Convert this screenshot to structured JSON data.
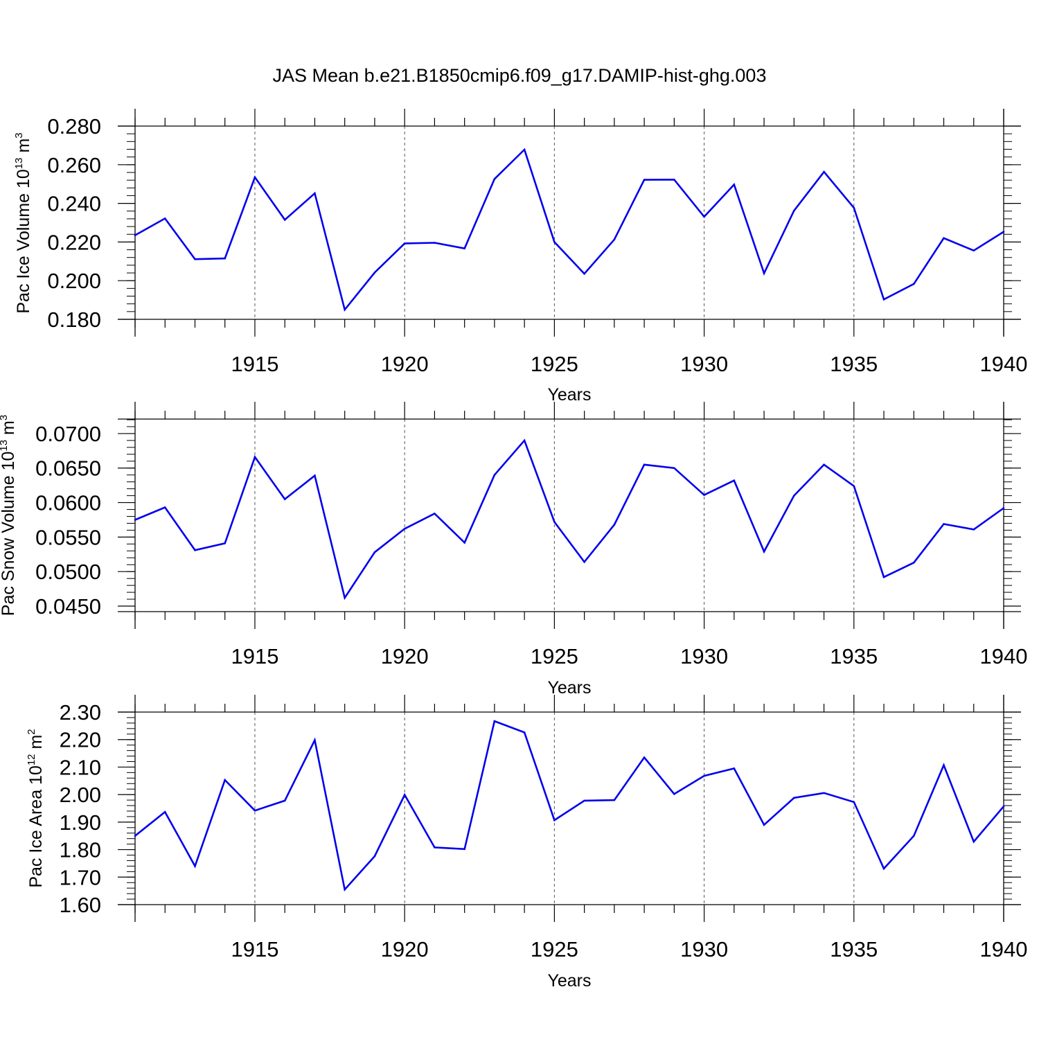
{
  "title": "JAS Mean b.e21.B1850cmip6.f09_g17.DAMIP-hist-ghg.003",
  "colors": {
    "series": "#0000ee",
    "axes": "#000000",
    "grid": "#555555"
  },
  "chart_data": [
    {
      "type": "line",
      "xlabel": "Years",
      "ylabel": {
        "prefix": "Pac Ice Volume 10",
        "exponent": "13",
        "unit": " m",
        "unit_exponent": "3"
      },
      "xlim": [
        1911,
        1940
      ],
      "ylim": [
        0.18,
        0.28
      ],
      "x_ticks": [
        "1915",
        "1920",
        "1925",
        "1930",
        "1935",
        "1940"
      ],
      "y_ticks": [
        "0.180",
        "0.200",
        "0.220",
        "0.240",
        "0.260",
        "0.280"
      ],
      "grid": "dashed vertical at major x ticks",
      "x": [
        1911,
        1912,
        1913,
        1914,
        1915,
        1916,
        1917,
        1918,
        1919,
        1920,
        1921,
        1922,
        1923,
        1924,
        1925,
        1926,
        1927,
        1928,
        1929,
        1930,
        1931,
        1932,
        1933,
        1934,
        1935,
        1936,
        1937,
        1938,
        1939,
        1940
      ],
      "values": [
        0.2235,
        0.2322,
        0.2111,
        0.2115,
        0.2535,
        0.2315,
        0.2452,
        0.185,
        0.2042,
        0.2193,
        0.2196,
        0.2167,
        0.2526,
        0.2678,
        0.22,
        0.2036,
        0.2213,
        0.2522,
        0.2523,
        0.2331,
        0.2497,
        0.2038,
        0.2362,
        0.2563,
        0.2377,
        0.1903,
        0.1983,
        0.222,
        0.2156,
        0.2253
      ]
    },
    {
      "type": "line",
      "xlabel": "Years",
      "ylabel": {
        "prefix": "Pac Snow Volume 10",
        "exponent": "13",
        "unit": " m",
        "unit_exponent": "3"
      },
      "xlim": [
        1911,
        1940
      ],
      "ylim": [
        0.0442,
        0.0721
      ],
      "x_ticks": [
        "1915",
        "1920",
        "1925",
        "1930",
        "1935",
        "1940"
      ],
      "y_ticks": [
        "0.0450",
        "0.0500",
        "0.0550",
        "0.0600",
        "0.0650",
        "0.0700"
      ],
      "grid": "dashed vertical at major x ticks",
      "x": [
        1911,
        1912,
        1913,
        1914,
        1915,
        1916,
        1917,
        1918,
        1919,
        1920,
        1921,
        1922,
        1923,
        1924,
        1925,
        1926,
        1927,
        1928,
        1929,
        1930,
        1931,
        1932,
        1933,
        1934,
        1935,
        1936,
        1937,
        1938,
        1939,
        1940
      ],
      "values": [
        0.0575,
        0.0593,
        0.0531,
        0.0541,
        0.0666,
        0.0605,
        0.0639,
        0.0462,
        0.0528,
        0.0562,
        0.0584,
        0.0542,
        0.064,
        0.069,
        0.0572,
        0.0514,
        0.0568,
        0.0655,
        0.065,
        0.0611,
        0.0632,
        0.0529,
        0.061,
        0.0655,
        0.0624,
        0.0492,
        0.0513,
        0.0569,
        0.0561,
        0.0592
      ]
    },
    {
      "type": "line",
      "xlabel": "Years",
      "ylabel": {
        "prefix": "Pac Ice Area 10",
        "exponent": "12",
        "unit": " m",
        "unit_exponent": "2"
      },
      "xlim": [
        1911,
        1940
      ],
      "ylim": [
        1.6,
        2.3
      ],
      "x_ticks": [
        "1915",
        "1920",
        "1925",
        "1930",
        "1935",
        "1940"
      ],
      "y_ticks": [
        "1.60",
        "1.70",
        "1.80",
        "1.90",
        "2.00",
        "2.10",
        "2.20",
        "2.30"
      ],
      "grid": "dashed vertical at major x ticks",
      "x": [
        1911,
        1912,
        1913,
        1914,
        1915,
        1916,
        1917,
        1918,
        1919,
        1920,
        1921,
        1922,
        1923,
        1924,
        1925,
        1926,
        1927,
        1928,
        1929,
        1930,
        1931,
        1932,
        1933,
        1934,
        1935,
        1936,
        1937,
        1938,
        1939,
        1940
      ],
      "values": [
        1.85,
        1.937,
        1.74,
        2.053,
        1.942,
        1.978,
        2.198,
        1.655,
        1.776,
        1.999,
        1.808,
        1.802,
        2.267,
        2.226,
        1.907,
        1.978,
        1.98,
        2.135,
        2.002,
        2.068,
        2.095,
        1.89,
        1.988,
        2.006,
        1.973,
        1.731,
        1.85,
        2.107,
        1.829,
        1.957
      ]
    }
  ]
}
